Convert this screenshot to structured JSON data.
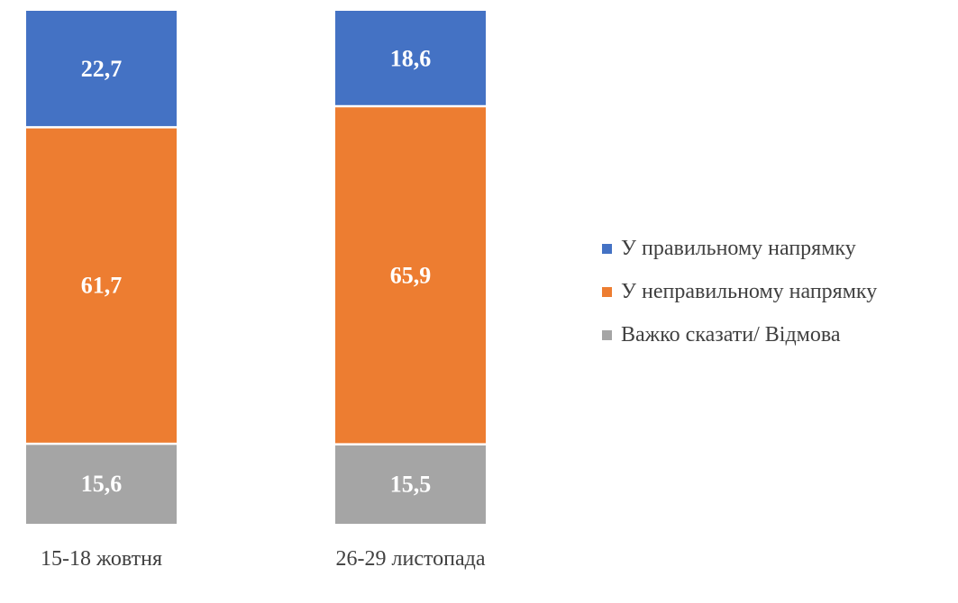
{
  "chart_data": {
    "type": "bar",
    "stacked": true,
    "orientation": "vertical",
    "categories": [
      "15-18 жовтня",
      "26-29 листопада"
    ],
    "series": [
      {
        "name": "У правильному напрямку",
        "values": [
          22.7,
          18.6
        ],
        "labels": [
          "22,7",
          "18,6"
        ],
        "color": "#4472C4"
      },
      {
        "name": "У неправильному напрямку",
        "values": [
          61.7,
          65.9
        ],
        "labels": [
          "61,7",
          "65,9"
        ],
        "color": "#ED7D31"
      },
      {
        "name": "Важко сказати/ Відмова",
        "values": [
          15.6,
          15.5
        ],
        "labels": [
          "15,6",
          "15,5"
        ],
        "color": "#A5A5A5"
      }
    ],
    "stack_order": "bottom-to-top: Важко сказати/ Відмова, У неправильному напрямку, У правильному напрямку",
    "ylim": [
      0,
      100
    ],
    "grid": false,
    "axes_visible": false,
    "legend_position": "right",
    "data_label_color": "#FFFFFF"
  }
}
